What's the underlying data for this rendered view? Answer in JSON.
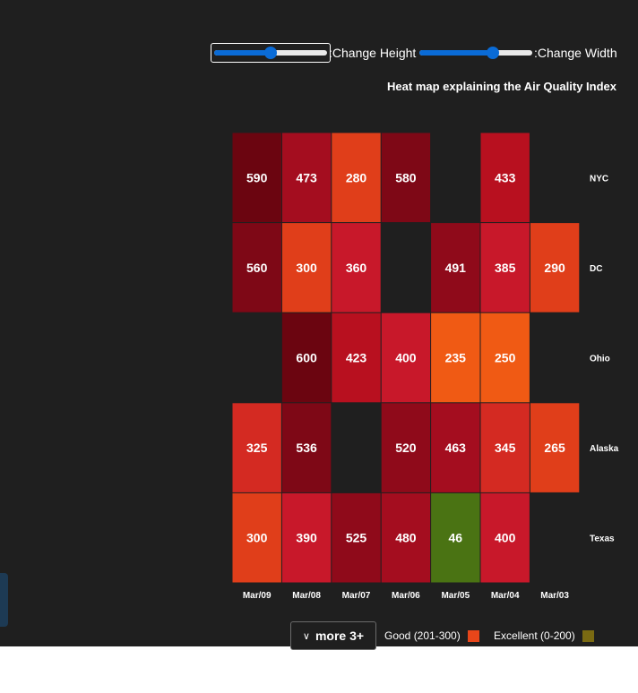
{
  "controls": {
    "height_label": ":Change Height",
    "width_label": ":Change Width",
    "height_value": 0.5,
    "width_value": 0.65
  },
  "legend": {
    "more_label": "more 3+",
    "items": [
      {
        "label": "Good (201-300)",
        "color": "#e8461a"
      },
      {
        "label": "Excellent (0-200)",
        "color": "#7a6a12"
      }
    ]
  },
  "colors": {
    "background": "#1f1f1f",
    "slider_accent": "#0a6bd6"
  },
  "chart_data": {
    "type": "heatmap",
    "title": "Heat map explaining the Air Quality Index",
    "x_categories": [
      "Mar/09",
      "Mar/08",
      "Mar/07",
      "Mar/06",
      "Mar/05",
      "Mar/04",
      "Mar/03"
    ],
    "y_categories": [
      "NYC",
      "DC",
      "Ohio",
      "Alaska",
      "Texas"
    ],
    "values": [
      [
        590,
        473,
        280,
        580,
        null,
        433,
        null
      ],
      [
        560,
        300,
        360,
        null,
        491,
        385,
        290
      ],
      [
        null,
        600,
        423,
        400,
        235,
        250,
        null
      ],
      [
        325,
        536,
        null,
        520,
        463,
        345,
        265
      ],
      [
        300,
        390,
        525,
        480,
        46,
        400,
        null
      ]
    ],
    "color_scale": [
      {
        "max": 200,
        "color": "#4a7313"
      },
      {
        "max": 250,
        "color": "#f05a14"
      },
      {
        "max": 300,
        "color": "#e03e1a"
      },
      {
        "max": 350,
        "color": "#d42a22"
      },
      {
        "max": 400,
        "color": "#c8182a"
      },
      {
        "max": 450,
        "color": "#b8101f"
      },
      {
        "max": 480,
        "color": "#a40d1f"
      },
      {
        "max": 530,
        "color": "#8f0a1a"
      },
      {
        "max": 580,
        "color": "#7e0816"
      },
      {
        "max": 1000,
        "color": "#6b0510"
      }
    ],
    "y_axis_position": "right",
    "x_axis_position": "bottom",
    "legend_placement": "bottom-right"
  }
}
